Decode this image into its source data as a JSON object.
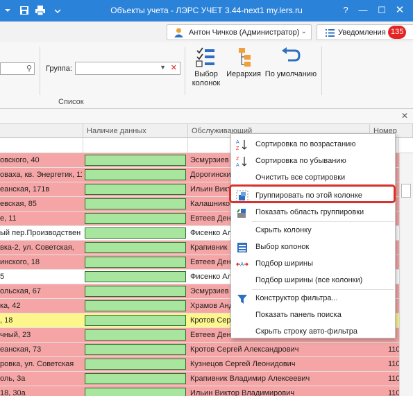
{
  "window": {
    "title": "Объекты учета - ЛЭРС УЧЕТ 3.44-next1 my.lers.ru",
    "icons": [
      "dropdown-arrow-icon",
      "save-icon",
      "print-icon",
      "customize-arrow-icon"
    ],
    "controls": [
      "help-icon",
      "minimize-icon",
      "maximize-icon",
      "close-icon"
    ]
  },
  "userbar": {
    "user_name": "Антон Чичков (Администратор)",
    "notifications_label": "Уведомления",
    "notifications_count": "135"
  },
  "ribbon": {
    "group_label": "Группа:",
    "section_label": "Список",
    "buttons": [
      {
        "label_line1": "Выбор",
        "label_line2": "колонок"
      },
      {
        "label_line1": "Иерархия",
        "label_line2": ""
      },
      {
        "label_line1": "По умолчанию",
        "label_line2": ""
      }
    ]
  },
  "grid": {
    "headers": [
      "",
      "Наличие данных",
      "Обслуживающий",
      "Номер"
    ],
    "colors": {
      "red": "#f5a5a5",
      "white": "#ffffff",
      "yellow": "#fdf68c",
      "green": "#a8e6a0"
    },
    "rows": [
      {
        "addr": "овского, 40",
        "serv": "Эсмурзиев Б",
        "num": "8",
        "color": "red"
      },
      {
        "addr": "оваха, кв. Энергетик, 11",
        "serv": "Дорогинский",
        "num": "8",
        "color": "red"
      },
      {
        "addr": "еанская, 171в",
        "serv": "Ильин Викт",
        "num": "8",
        "color": "red"
      },
      {
        "addr": "евская, 85",
        "serv": "Калашников",
        "num": "8",
        "color": "red"
      },
      {
        "addr": "е, 11",
        "serv": "Евтеев Ден",
        "num": "8",
        "color": "red"
      },
      {
        "addr": "ый пер.Производствен",
        "serv": "Фисенко Ал",
        "num": "8",
        "color": "white"
      },
      {
        "addr": "вка-2, ул. Советская,",
        "serv": "Крапивник",
        "num": "8",
        "color": "red"
      },
      {
        "addr": "инского, 18",
        "serv": "Евтеев Ден",
        "num": "8",
        "color": "red"
      },
      {
        "addr": "5",
        "serv": "Фисенко Ал",
        "num": "9",
        "color": "white"
      },
      {
        "addr": "ольская, 67",
        "serv": "Эсмурзиев Б",
        "num": "9",
        "color": "red"
      },
      {
        "addr": "ка, 42",
        "serv": "Храмов Анд",
        "num": "9",
        "color": "red"
      },
      {
        "addr": ", 18",
        "serv": "Кротов Серг",
        "num": "9",
        "color": "yellow"
      },
      {
        "addr": "чный, 23",
        "serv": "Евтеев Ден",
        "num": "9",
        "color": "red"
      },
      {
        "addr": "еанская, 73",
        "serv": "Кротов Сергей Александрович",
        "num": "110",
        "color": "red"
      },
      {
        "addr": "ровка, ул. Советская",
        "serv": "Кузнецов Сергей Леонидович",
        "num": "110",
        "color": "red"
      },
      {
        "addr": "оль, 3а",
        "serv": "Крапивник Владимир Алексеевич",
        "num": "110",
        "color": "red"
      },
      {
        "addr": "18, 30а",
        "serv": "Ильин Виктор Владимирович",
        "num": "110",
        "color": "red"
      }
    ]
  },
  "context_menu": {
    "items": [
      {
        "label": "Сортировка по возрастанию",
        "icon": "sort-ascending-icon"
      },
      {
        "label": "Сортировка по убыванию",
        "icon": "sort-descending-icon"
      },
      {
        "label": "Очистить все сортировки",
        "icon": ""
      },
      {
        "label": "Группировать по этой колонке",
        "icon": "group-by-column-icon",
        "highlighted": true
      },
      {
        "label": "Показать область группировки",
        "icon": "group-panel-icon"
      },
      {
        "label": "Скрыть колонку",
        "icon": ""
      },
      {
        "label": "Выбор колонок",
        "icon": "column-chooser-icon"
      },
      {
        "label": "Подбор ширины",
        "icon": "best-fit-icon"
      },
      {
        "label": "Подбор ширины (все колонки)",
        "icon": ""
      },
      {
        "label": "Конструктор фильтра...",
        "icon": "filter-icon"
      },
      {
        "label": "Показать панель поиска",
        "icon": ""
      },
      {
        "label": "Скрыть строку авто-фильтра",
        "icon": ""
      }
    ]
  }
}
